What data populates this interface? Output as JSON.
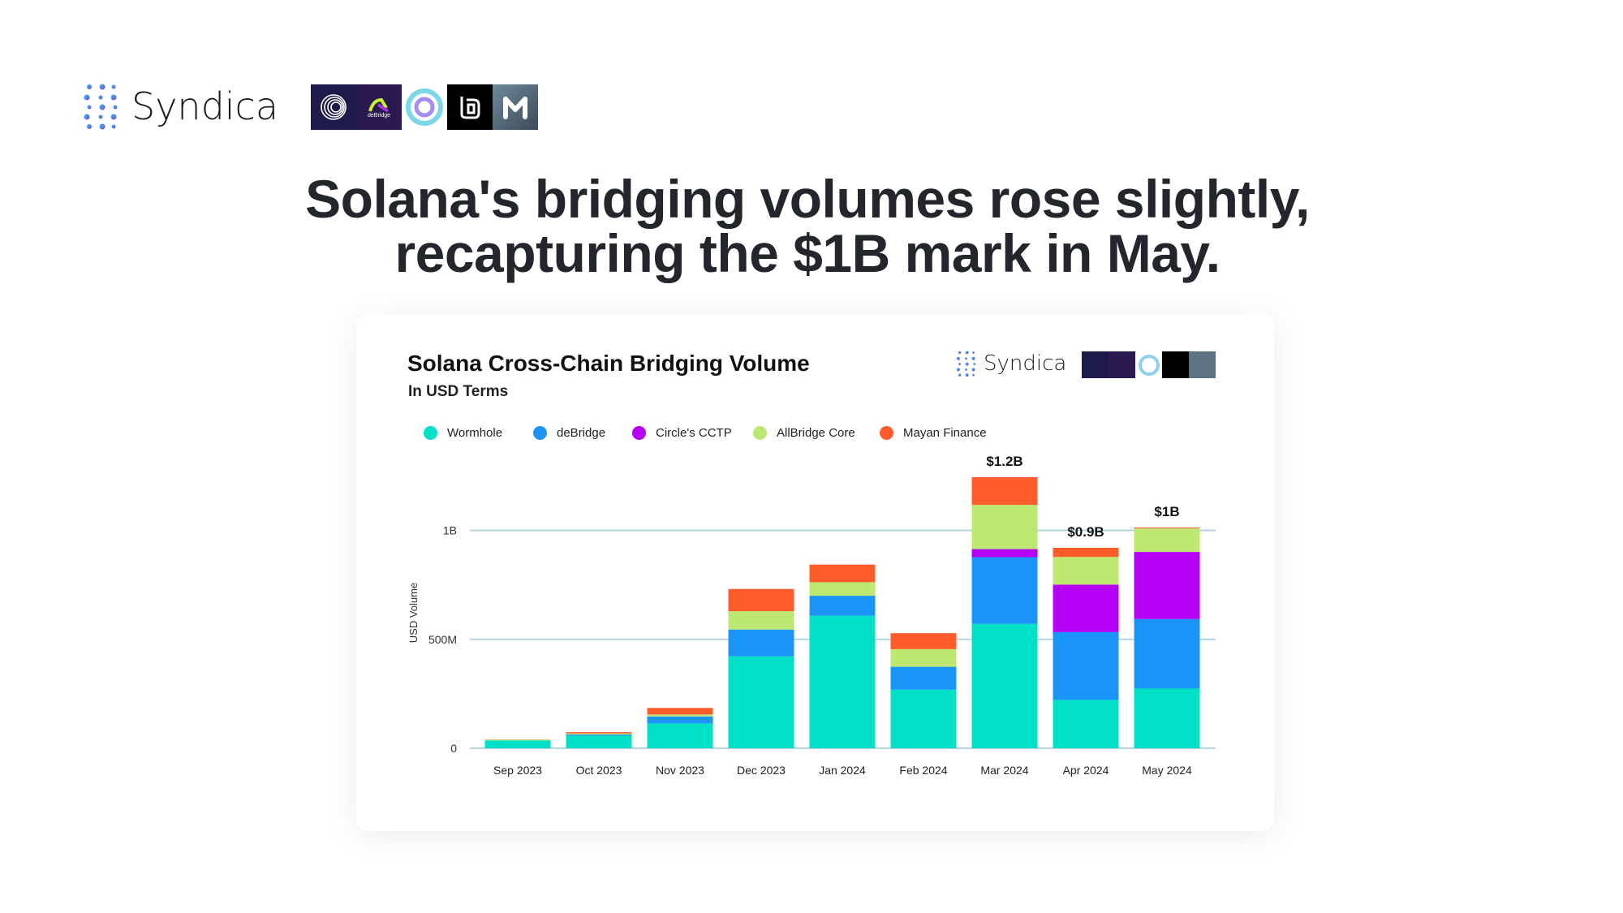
{
  "header": {
    "brand": "Syndica",
    "headline_line1": "Solana's bridging volumes rose slightly,",
    "headline_line2": "recapturing the $1B mark in May.",
    "partner_logos": [
      "wormhole-logo",
      "debridge-logo",
      "circle-logo",
      "allbridge-logo",
      "mayan-logo"
    ],
    "debridge_logo_text": "deBridge"
  },
  "card": {
    "brand": "Syndica"
  },
  "chart_data": {
    "type": "bar",
    "stacked": true,
    "title": "Solana Cross-Chain Bridging Volume",
    "subtitle": "In USD Terms",
    "xlabel": "",
    "ylabel": "USD Volume",
    "ylim": [
      0,
      1300000000
    ],
    "yticks": [
      {
        "value": 0,
        "label": "0"
      },
      {
        "value": 500000000,
        "label": "500M"
      },
      {
        "value": 1000000000,
        "label": "1B"
      }
    ],
    "grid": true,
    "legend_position": "top-left",
    "categories": [
      "Sep 2023",
      "Oct 2023",
      "Nov 2023",
      "Dec 2023",
      "Jan 2024",
      "Feb 2024",
      "Mar 2024",
      "Apr 2024",
      "May 2024"
    ],
    "series": [
      {
        "name": "Wormhole",
        "color": "#00e0c6",
        "values_m": [
          36,
          58,
          114,
          422,
          608,
          269,
          571,
          222,
          274
        ]
      },
      {
        "name": "deBridge",
        "color": "#1a95f7",
        "values_m": [
          0,
          5,
          32,
          123,
          92,
          105,
          306,
          311,
          319
        ]
      },
      {
        "name": "Circle's CCTP",
        "color": "#b400f5",
        "values_m": [
          0,
          0,
          0,
          0,
          0,
          0,
          37,
          218,
          308
        ]
      },
      {
        "name": "AllBridge Core",
        "color": "#bce872",
        "values_m": [
          3,
          5,
          9,
          84,
          62,
          81,
          203,
          127,
          108
        ]
      },
      {
        "name": "Mayan Finance",
        "color": "#ff5c2b",
        "values_m": [
          1,
          6,
          30,
          102,
          81,
          73,
          127,
          42,
          4
        ]
      }
    ],
    "annotations": [
      {
        "category": "Mar 2024",
        "label": "$1.2B"
      },
      {
        "category": "Apr 2024",
        "label": "$0.9B"
      },
      {
        "category": "May 2024",
        "label": "$1B"
      }
    ]
  }
}
